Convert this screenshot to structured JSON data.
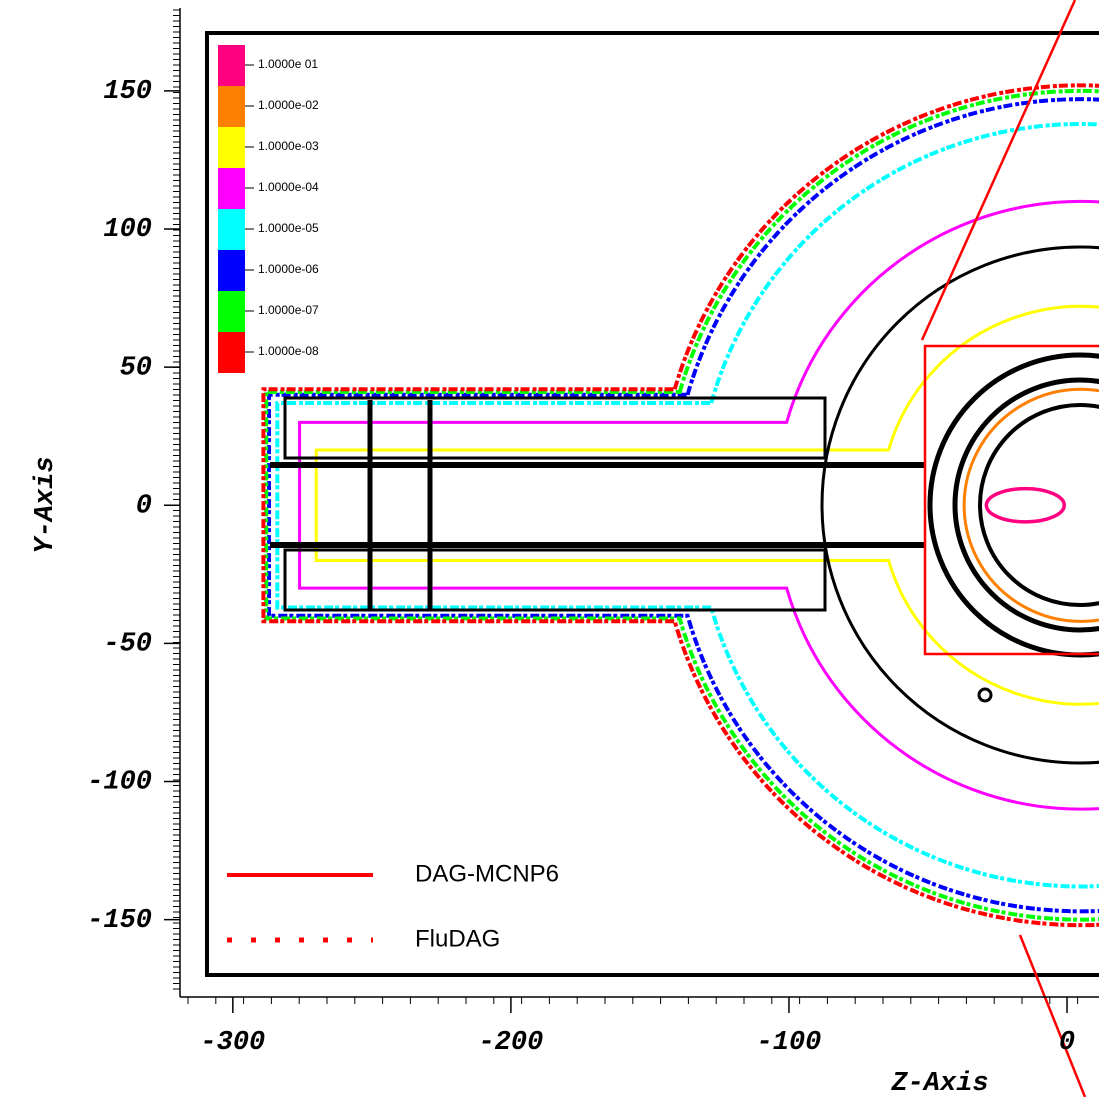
{
  "chart_data": {
    "type": "contour",
    "xlabel": "Z-Axis",
    "ylabel": "Y-Axis",
    "xlim": [
      -319,
      11.5
    ],
    "ylim": [
      -178,
      180
    ],
    "xticks": [
      -300,
      -200,
      -100,
      0
    ],
    "yticks": [
      150,
      100,
      50,
      0,
      -50,
      -100,
      -150
    ],
    "levels": [
      {
        "value": 0.1,
        "label": "1.0000e 01",
        "color": "#ff0080"
      },
      {
        "value": 0.01,
        "label": "1.0000e-02",
        "color": "#ff8000"
      },
      {
        "value": 0.001,
        "label": "1.0000e-03",
        "color": "#ffff00"
      },
      {
        "value": 0.0001,
        "label": "1.0000e-04",
        "color": "#ff00ff"
      },
      {
        "value": 1e-05,
        "label": "1.0000e-05",
        "color": "#00ffff"
      },
      {
        "value": 1e-06,
        "label": "1.0000e-06",
        "color": "#0000ff"
      },
      {
        "value": 1e-07,
        "label": "1.0000e-07",
        "color": "#00ff00"
      },
      {
        "value": 1e-08,
        "label": "1.0000e-08",
        "color": "#ff0000"
      }
    ],
    "legend": [
      {
        "name": "DAG-MCNP6",
        "color": "#ff0000",
        "style": "solid"
      },
      {
        "name": "FluDAG",
        "color": "#ff0000",
        "style": "dotted"
      }
    ]
  }
}
